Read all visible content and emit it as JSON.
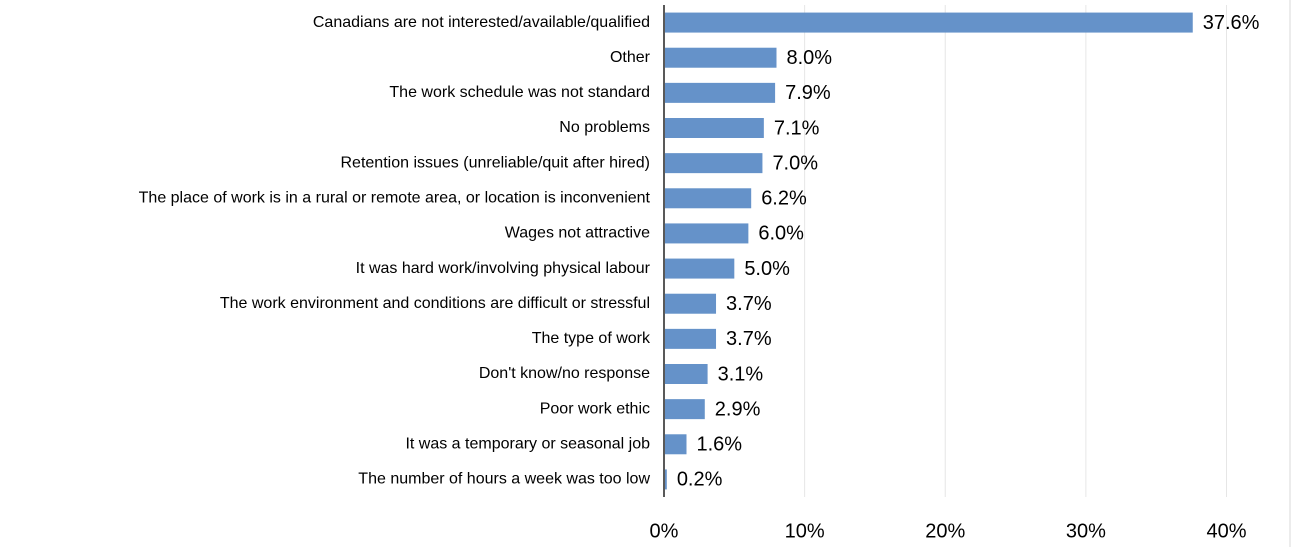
{
  "chart_data": {
    "type": "bar",
    "orientation": "horizontal",
    "categories": [
      "Canadians are not interested/available/qualified",
      "Other",
      "The work schedule was not standard",
      "No problems",
      "Retention issues (unreliable/quit after hired)",
      "The place of work is in a rural or remote area, or location is inconvenient",
      "Wages not attractive",
      "It was hard work/involving physical labour",
      "The work environment and conditions are difficult or stressful",
      "The type of work",
      "Don't know/no response",
      "Poor work ethic",
      "It was a temporary or seasonal job",
      "The number of hours a week was too low"
    ],
    "values": [
      37.6,
      8.0,
      7.9,
      7.1,
      7.0,
      6.2,
      6.0,
      5.0,
      3.7,
      3.7,
      3.1,
      2.9,
      1.6,
      0.2
    ],
    "value_labels": [
      "37.6%",
      "8.0%",
      "7.9%",
      "7.1%",
      "7.0%",
      "6.2%",
      "6.0%",
      "5.0%",
      "3.7%",
      "3.7%",
      "3.1%",
      "2.9%",
      "1.6%",
      "0.2%"
    ],
    "color": "#6592c9",
    "xlim": [
      0,
      40
    ],
    "xticks": [
      {
        "value": 0,
        "label": "0%"
      },
      {
        "value": 10,
        "label": "10%"
      },
      {
        "value": 20,
        "label": "20%"
      },
      {
        "value": 30,
        "label": "30%"
      },
      {
        "value": 40,
        "label": "40%"
      }
    ],
    "grid": true
  }
}
